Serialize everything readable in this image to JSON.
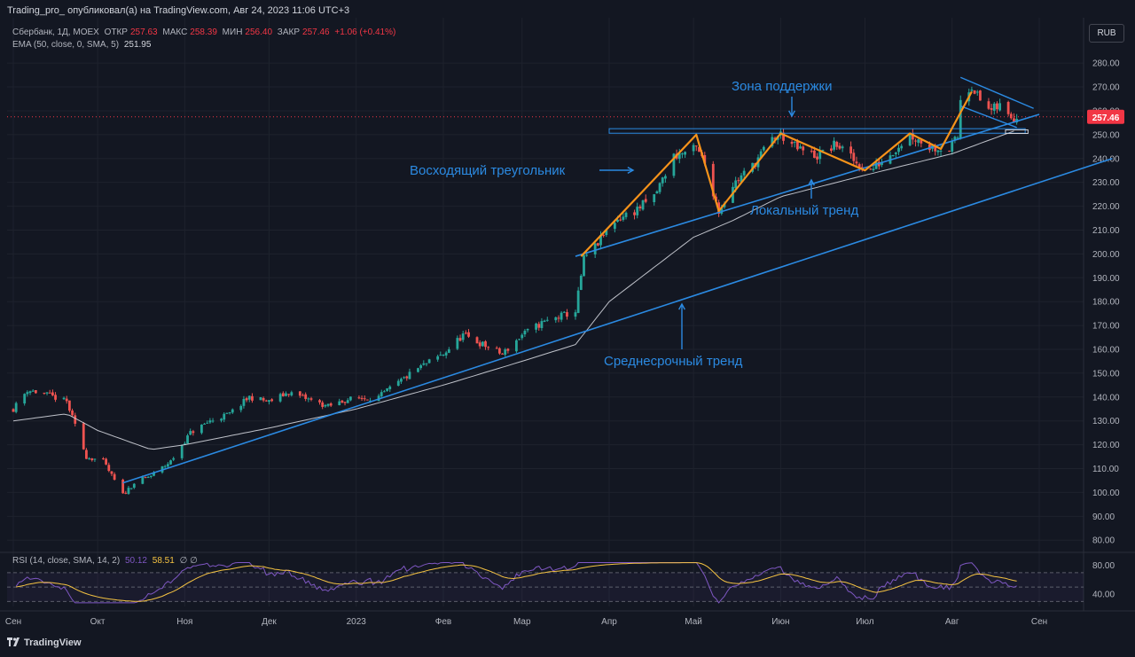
{
  "header": {
    "published_by": "Trading_pro_ опубликовал(а) на TradingView.com, Авг 24, 2023 11:06 UTC+3"
  },
  "legend": {
    "symbol": "Сбербанк, 1Д, MOEX",
    "open_label": "ОТКР",
    "open": "257.63",
    "high_label": "МАКС",
    "high": "258.39",
    "low_label": "МИН",
    "low": "256.40",
    "close_label": "ЗАКР",
    "close": "257.46",
    "change": "+1.06 (+0.41%)",
    "ema_label": "EMA (50, close, 0, SMA, 5)",
    "ema_value": "251.95"
  },
  "rsi_legend": {
    "label": "RSI (14, close, SMA, 14, 2)",
    "rsi": "50.12",
    "rsi_ma": "58.51",
    "extra": "∅ ∅"
  },
  "currency_button": "RUB",
  "brand": {
    "icon": "tradingview-logo-icon",
    "name": "TradingView"
  },
  "chart_data": {
    "type": "candlestick",
    "symbol": "Сбербанк, 1Д, MOEX",
    "price_axis_ticks": [
      280,
      270,
      260,
      250,
      240,
      230,
      220,
      210,
      200,
      190,
      180,
      170,
      160,
      150,
      140,
      130,
      120,
      110,
      100,
      90,
      80
    ],
    "price_axis_labels": [
      "280.00",
      "270.00",
      "260.00",
      "250.00",
      "240.00",
      "230.00",
      "220.00",
      "210.00",
      "200.00",
      "190.00",
      "180.00",
      "170.00",
      "160.00",
      "150.00",
      "140.00",
      "130.00",
      "120.00",
      "110.00",
      "100.00",
      "90.00",
      "80.00"
    ],
    "ylim": [
      76,
      286
    ],
    "last_price": 257.46,
    "last_price_label": "257.46",
    "time_axis_labels": [
      "Сен",
      "Окт",
      "Ноя",
      "Дек",
      "2023",
      "Фев",
      "Мар",
      "Апр",
      "Май",
      "Июн",
      "Июл",
      "Авг",
      "Сен"
    ],
    "time_axis_dates": [
      "2022-09-01",
      "2022-10-01",
      "2022-11-01",
      "2022-12-01",
      "2023-01-01",
      "2023-02-01",
      "2023-03-01",
      "2023-04-01",
      "2023-05-01",
      "2023-06-01",
      "2023-07-01",
      "2023-08-01",
      "2023-09-01"
    ],
    "price_path": [
      [
        "2022-09-01",
        135
      ],
      [
        "2022-09-06",
        143
      ],
      [
        "2022-09-13",
        141
      ],
      [
        "2022-09-20",
        138
      ],
      [
        "2022-09-23",
        128
      ],
      [
        "2022-09-27",
        115
      ],
      [
        "2022-10-03",
        113
      ],
      [
        "2022-10-07",
        105
      ],
      [
        "2022-10-10",
        99
      ],
      [
        "2022-10-14",
        104
      ],
      [
        "2022-10-20",
        107
      ],
      [
        "2022-10-27",
        113
      ],
      [
        "2022-11-03",
        125
      ],
      [
        "2022-11-10",
        130
      ],
      [
        "2022-11-17",
        133
      ],
      [
        "2022-11-24",
        140
      ],
      [
        "2022-12-01",
        138
      ],
      [
        "2022-12-08",
        142
      ],
      [
        "2022-12-15",
        139
      ],
      [
        "2022-12-22",
        136
      ],
      [
        "2022-12-29",
        139
      ],
      [
        "2023-01-09",
        140
      ],
      [
        "2023-01-16",
        146
      ],
      [
        "2023-01-23",
        152
      ],
      [
        "2023-02-01",
        158
      ],
      [
        "2023-02-08",
        166
      ],
      [
        "2023-02-15",
        162
      ],
      [
        "2023-02-22",
        158
      ],
      [
        "2023-03-01",
        166
      ],
      [
        "2023-03-08",
        171
      ],
      [
        "2023-03-15",
        174
      ],
      [
        "2023-03-20",
        176
      ],
      [
        "2023-03-23",
        198
      ],
      [
        "2023-03-27",
        203
      ],
      [
        "2023-04-03",
        214
      ],
      [
        "2023-04-10",
        218
      ],
      [
        "2023-04-17",
        224
      ],
      [
        "2023-04-24",
        241
      ],
      [
        "2023-05-02",
        244
      ],
      [
        "2023-05-05",
        238
      ],
      [
        "2023-05-10",
        218
      ],
      [
        "2023-05-15",
        229
      ],
      [
        "2023-05-22",
        237
      ],
      [
        "2023-05-29",
        248
      ],
      [
        "2023-06-01",
        250
      ],
      [
        "2023-06-07",
        244
      ],
      [
        "2023-06-14",
        241
      ],
      [
        "2023-06-21",
        246
      ],
      [
        "2023-06-28",
        238
      ],
      [
        "2023-07-03",
        235
      ],
      [
        "2023-07-10",
        242
      ],
      [
        "2023-07-17",
        250
      ],
      [
        "2023-07-24",
        245
      ],
      [
        "2023-07-31",
        244
      ],
      [
        "2023-08-03",
        249
      ],
      [
        "2023-08-04",
        265
      ],
      [
        "2023-08-08",
        271
      ],
      [
        "2023-08-11",
        264
      ],
      [
        "2023-08-15",
        260
      ],
      [
        "2023-08-18",
        262
      ],
      [
        "2023-08-21",
        258
      ],
      [
        "2023-08-24",
        257.46
      ]
    ],
    "ema_path": [
      [
        "2022-09-01",
        130
      ],
      [
        "2022-09-20",
        133
      ],
      [
        "2022-10-01",
        126
      ],
      [
        "2022-10-20",
        118
      ],
      [
        "2022-11-01",
        120
      ],
      [
        "2022-12-01",
        127
      ],
      [
        "2023-01-01",
        135
      ],
      [
        "2023-02-01",
        145
      ],
      [
        "2023-03-01",
        155
      ],
      [
        "2023-03-20",
        162
      ],
      [
        "2023-04-01",
        180
      ],
      [
        "2023-05-01",
        207
      ],
      [
        "2023-05-15",
        214
      ],
      [
        "2023-06-01",
        224
      ],
      [
        "2023-07-01",
        233
      ],
      [
        "2023-08-01",
        242
      ],
      [
        "2023-08-24",
        251.95
      ]
    ],
    "ema_last": 251.95,
    "annotations": [
      {
        "text": "Зона поддержки",
        "color": "#2b8ae2"
      },
      {
        "text": "Восходящий треугольник",
        "color": "#2b8ae2"
      },
      {
        "text": "Локальный тренд",
        "color": "#2b8ae2"
      },
      {
        "text": "Среднесрочный тренд",
        "color": "#2b8ae2"
      }
    ],
    "drawings": {
      "support_zone": {
        "start": "2023-04-01",
        "end": "2023-08-27",
        "price_top": 252.5,
        "price_bottom": 250.6
      },
      "local_trend": {
        "start": [
          "2023-03-20",
          199
        ],
        "end": [
          "2023-09-01",
          258.5
        ]
      },
      "medium_trend": {
        "start": [
          "2022-10-10",
          104
        ],
        "end": [
          "2023-09-27",
          240
        ]
      },
      "triangle_zigzag": [
        [
          "2023-03-22",
          199
        ],
        [
          "2023-05-02",
          250
        ],
        [
          "2023-05-10",
          218
        ],
        [
          "2023-06-01",
          250.5
        ],
        [
          "2023-07-01",
          235
        ],
        [
          "2023-07-17",
          250.5
        ],
        [
          "2023-07-28",
          244
        ],
        [
          "2023-08-08",
          268
        ]
      ],
      "flag_top": {
        "start": [
          "2023-08-04",
          274
        ],
        "end": [
          "2023-08-30",
          261
        ]
      },
      "flag_bottom": {
        "start": [
          "2023-08-04",
          262
        ],
        "end": [
          "2023-08-24",
          253
        ]
      },
      "flag_box": {
        "start": "2023-08-20",
        "end": "2023-08-28",
        "price_top": 252,
        "price_bottom": 250.5
      }
    },
    "rsi": {
      "name": "RSI (14, close, SMA, 14, 2)",
      "last": 50.12,
      "ma_last": 58.51,
      "levels": [
        70,
        50,
        30
      ],
      "axis_labels": [
        "80.00",
        "40.00"
      ],
      "axis_ticks": [
        80,
        40
      ]
    },
    "colors": {
      "up": "#26a69a",
      "down": "#ef5350",
      "ema": "#d1d4dc",
      "trend": "#2b8ae2",
      "zigzag": "#f7931a",
      "rsi": "#7e57c2",
      "rsi_ma": "#f5c342",
      "price_line": "#f23645"
    },
    "grid": true
  }
}
